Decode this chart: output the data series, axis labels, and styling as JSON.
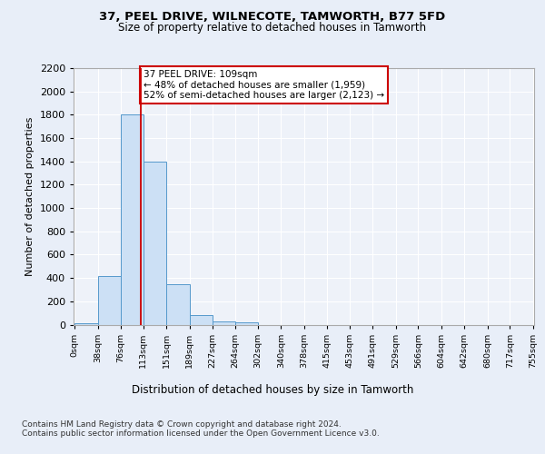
{
  "title1": "37, PEEL DRIVE, WILNECOTE, TAMWORTH, B77 5FD",
  "title2": "Size of property relative to detached houses in Tamworth",
  "xlabel": "Distribution of detached houses by size in Tamworth",
  "ylabel": "Number of detached properties",
  "bin_edges": [
    0,
    38,
    76,
    113,
    151,
    189,
    227,
    264,
    302,
    340,
    378,
    415,
    453,
    491,
    529,
    566,
    604,
    642,
    680,
    717,
    755
  ],
  "bar_heights": [
    15,
    420,
    1800,
    1400,
    350,
    80,
    30,
    18,
    0,
    0,
    0,
    0,
    0,
    0,
    0,
    0,
    0,
    0,
    0,
    0
  ],
  "bar_color": "#cce0f5",
  "bar_edge_color": "#5599cc",
  "property_size": 109,
  "vline_color": "#cc0000",
  "annotation_text": "37 PEEL DRIVE: 109sqm\n← 48% of detached houses are smaller (1,959)\n52% of semi-detached houses are larger (2,123) →",
  "annotation_box_color": "#ffffff",
  "annotation_box_edge": "#cc0000",
  "ylim": [
    0,
    2200
  ],
  "yticks": [
    0,
    200,
    400,
    600,
    800,
    1000,
    1200,
    1400,
    1600,
    1800,
    2000,
    2200
  ],
  "bg_color": "#e8eef8",
  "plot_bg_color": "#eef2f9",
  "footer_line1": "Contains HM Land Registry data © Crown copyright and database right 2024.",
  "footer_line2": "Contains public sector information licensed under the Open Government Licence v3.0."
}
